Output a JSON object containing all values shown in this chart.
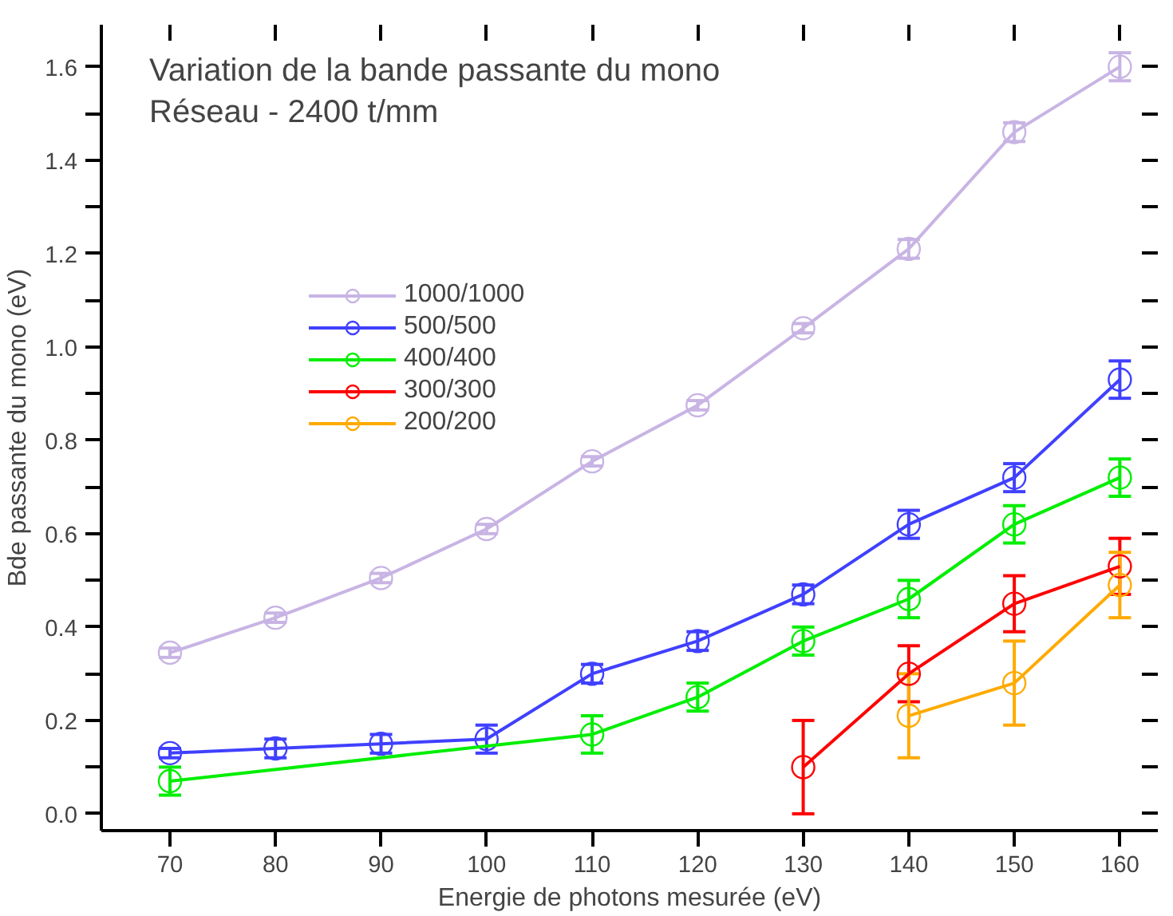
{
  "chart_data": {
    "type": "line",
    "title": "Variation de la bande passante du mono\nRéseau - 2400 t/mm",
    "xlabel": "Energie de photons mesurée (eV)",
    "ylabel": "Bde passante du mono (eV)",
    "xlim": [
      63.5,
      163.6
    ],
    "ylim": [
      -0.036,
      1.69
    ],
    "xticks": [
      70,
      80,
      90,
      100,
      110,
      120,
      130,
      140,
      150,
      160
    ],
    "yticks": [
      {
        "value": 0,
        "label": "0.0"
      },
      {
        "value": 0.1,
        "label": null
      },
      0.2,
      {
        "value": 0.3,
        "label": null
      },
      0.4,
      {
        "value": 0.5,
        "label": null
      },
      0.6,
      {
        "value": 0.7,
        "label": null
      },
      0.8,
      {
        "value": 0.9,
        "label": null
      },
      {
        "value": 1,
        "label": "1.0"
      },
      {
        "value": 1.1,
        "label": null
      },
      1.2,
      {
        "value": 1.3,
        "label": null
      },
      1.4,
      {
        "value": 1.5,
        "label": null
      },
      1.6
    ],
    "grid": false,
    "legend": "top left",
    "marker": "circle",
    "line_style": "solid",
    "series": [
      {
        "name": "1000/1000",
        "color": "#c8b4e4",
        "x": [
          70,
          80,
          90,
          100,
          110,
          120,
          130,
          140,
          150,
          160
        ],
        "values": [
          0.345,
          0.42,
          0.505,
          0.61,
          0.755,
          0.875,
          1.04,
          1.21,
          1.46,
          1.6
        ],
        "errors": [
          0.01,
          0.01,
          0.01,
          0.01,
          0.01,
          0.01,
          0.01,
          0.02,
          0.02,
          0.03
        ]
      },
      {
        "name": "500/500",
        "color": "#4040ff",
        "x": [
          70,
          80,
          90,
          100,
          110,
          120,
          130,
          140,
          150,
          160
        ],
        "values": [
          0.13,
          0.14,
          0.15,
          0.16,
          0.3,
          0.37,
          0.47,
          0.62,
          0.72,
          0.93
        ],
        "errors": [
          0.01,
          0.02,
          0.02,
          0.03,
          0.02,
          0.02,
          0.02,
          0.03,
          0.03,
          0.04
        ]
      },
      {
        "name": "400/400",
        "color": "#00ee00",
        "x": [
          70,
          110,
          120,
          130,
          140,
          150,
          160
        ],
        "values": [
          0.07,
          0.17,
          0.25,
          0.37,
          0.46,
          0.62,
          0.72
        ],
        "errors": [
          0.03,
          0.04,
          0.03,
          0.03,
          0.04,
          0.04,
          0.04
        ]
      },
      {
        "name": "300/300",
        "color": "#ff0000",
        "x": [
          130,
          140,
          150,
          160
        ],
        "values": [
          0.1,
          0.3,
          0.45,
          0.53
        ],
        "errors": [
          0.1,
          0.06,
          0.06,
          0.06
        ]
      },
      {
        "name": "200/200",
        "color": "#ffaa00",
        "x": [
          140,
          150,
          160
        ],
        "values": [
          0.21,
          0.28,
          0.49
        ],
        "errors": [
          0.09,
          0.09,
          0.07
        ]
      }
    ]
  }
}
